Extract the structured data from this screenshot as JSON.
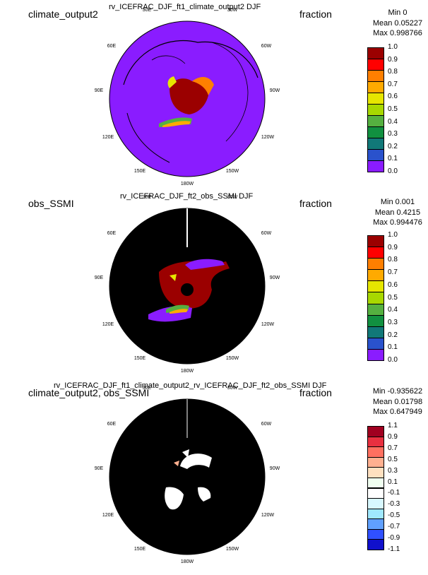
{
  "panels": [
    {
      "case_label": "climate_output2",
      "title": "rv_ICEFRAC_DJF_ft1_climate_output2  DJF",
      "units": "fraction",
      "stats": {
        "min": "Min 0",
        "mean": "Mean 0.05227",
        "max": "Max 0.998766"
      },
      "colorbar": {
        "ticks": [
          "1.0",
          "0.9",
          "0.8",
          "0.7",
          "0.6",
          "0.5",
          "0.4",
          "0.3",
          "0.2",
          "0.1",
          "0.0"
        ],
        "colors": [
          "#9b0000",
          "#ff0000",
          "#ff7f00",
          "#ffaa00",
          "#e6e600",
          "#a8d800",
          "#55b040",
          "#119040",
          "#117878",
          "#2a52cc",
          "#8a1cff"
        ]
      }
    },
    {
      "case_label": "obs_SSMI",
      "title": "rv_ICEFRAC_DJF_ft2_obs_SSMI  DJF",
      "units": "fraction",
      "stats": {
        "min": "Min 0.001",
        "mean": "Mean 0.4215",
        "max": "Max 0.994476"
      },
      "colorbar": {
        "ticks": [
          "1.0",
          "0.9",
          "0.8",
          "0.7",
          "0.6",
          "0.5",
          "0.4",
          "0.3",
          "0.2",
          "0.1",
          "0.0"
        ],
        "colors": [
          "#9b0000",
          "#ff0000",
          "#ff7f00",
          "#ffaa00",
          "#e6e600",
          "#a8d800",
          "#55b040",
          "#119040",
          "#117878",
          "#2a52cc",
          "#8a1cff"
        ]
      }
    },
    {
      "case_label": "climate_output2, obs_SSMI",
      "title": "rv_ICEFRAC_DJF_ft1_climate_output2_rv_ICEFRAC_DJF_ft2_obs_SSMI  DJF",
      "units": "fraction",
      "stats": {
        "min": "Min -0.935622",
        "mean": "Mean 0.01798",
        "max": "Max 0.647949"
      },
      "colorbar": {
        "ticks": [
          "1.1",
          "0.9",
          "0.7",
          "0.5",
          "0.3",
          "0.1",
          "-0.1",
          "-0.3",
          "-0.5",
          "-0.7",
          "-0.9",
          "-1.1"
        ],
        "colors": [
          "#a00020",
          "#e83040",
          "#ff7060",
          "#ffb090",
          "#ffe0c0",
          "#f0fff0",
          "#ffffff",
          "#d8f8ff",
          "#a0e8ff",
          "#60a0ff",
          "#3050ff",
          "#1010cc"
        ]
      }
    }
  ],
  "lon_labels": [
    "30E",
    "30W",
    "60E",
    "60W",
    "90E",
    "90W",
    "120E",
    "120W",
    "150E",
    "150W",
    "180W"
  ],
  "chart_data": [
    {
      "type": "heatmap",
      "title": "rv_ICEFRAC_DJF_ft1_climate_output2  DJF",
      "projection": "polar stereographic (north)",
      "colorbar_range": [
        0.0,
        1.0
      ],
      "colorbar_ticks": [
        0.0,
        0.1,
        0.2,
        0.3,
        0.4,
        0.5,
        0.6,
        0.7,
        0.8,
        0.9,
        1.0
      ],
      "stats": {
        "min": 0,
        "mean": 0.05227,
        "max": 0.998766
      }
    },
    {
      "type": "heatmap",
      "title": "rv_ICEFRAC_DJF_ft2_obs_SSMI  DJF",
      "projection": "polar stereographic (north)",
      "colorbar_range": [
        0.0,
        1.0
      ],
      "colorbar_ticks": [
        0.0,
        0.1,
        0.2,
        0.3,
        0.4,
        0.5,
        0.6,
        0.7,
        0.8,
        0.9,
        1.0
      ],
      "stats": {
        "min": 0.001,
        "mean": 0.4215,
        "max": 0.994476
      }
    },
    {
      "type": "heatmap",
      "title": "rv_ICEFRAC_DJF_ft1_climate_output2_rv_ICEFRAC_DJF_ft2_obs_SSMI  DJF",
      "projection": "polar stereographic (north)",
      "colorbar_range": [
        -1.1,
        1.1
      ],
      "colorbar_ticks": [
        -1.1,
        -0.9,
        -0.7,
        -0.5,
        -0.3,
        -0.1,
        0.1,
        0.3,
        0.5,
        0.7,
        0.9,
        1.1
      ],
      "stats": {
        "min": -0.935622,
        "mean": 0.01798,
        "max": 0.647949
      }
    }
  ]
}
